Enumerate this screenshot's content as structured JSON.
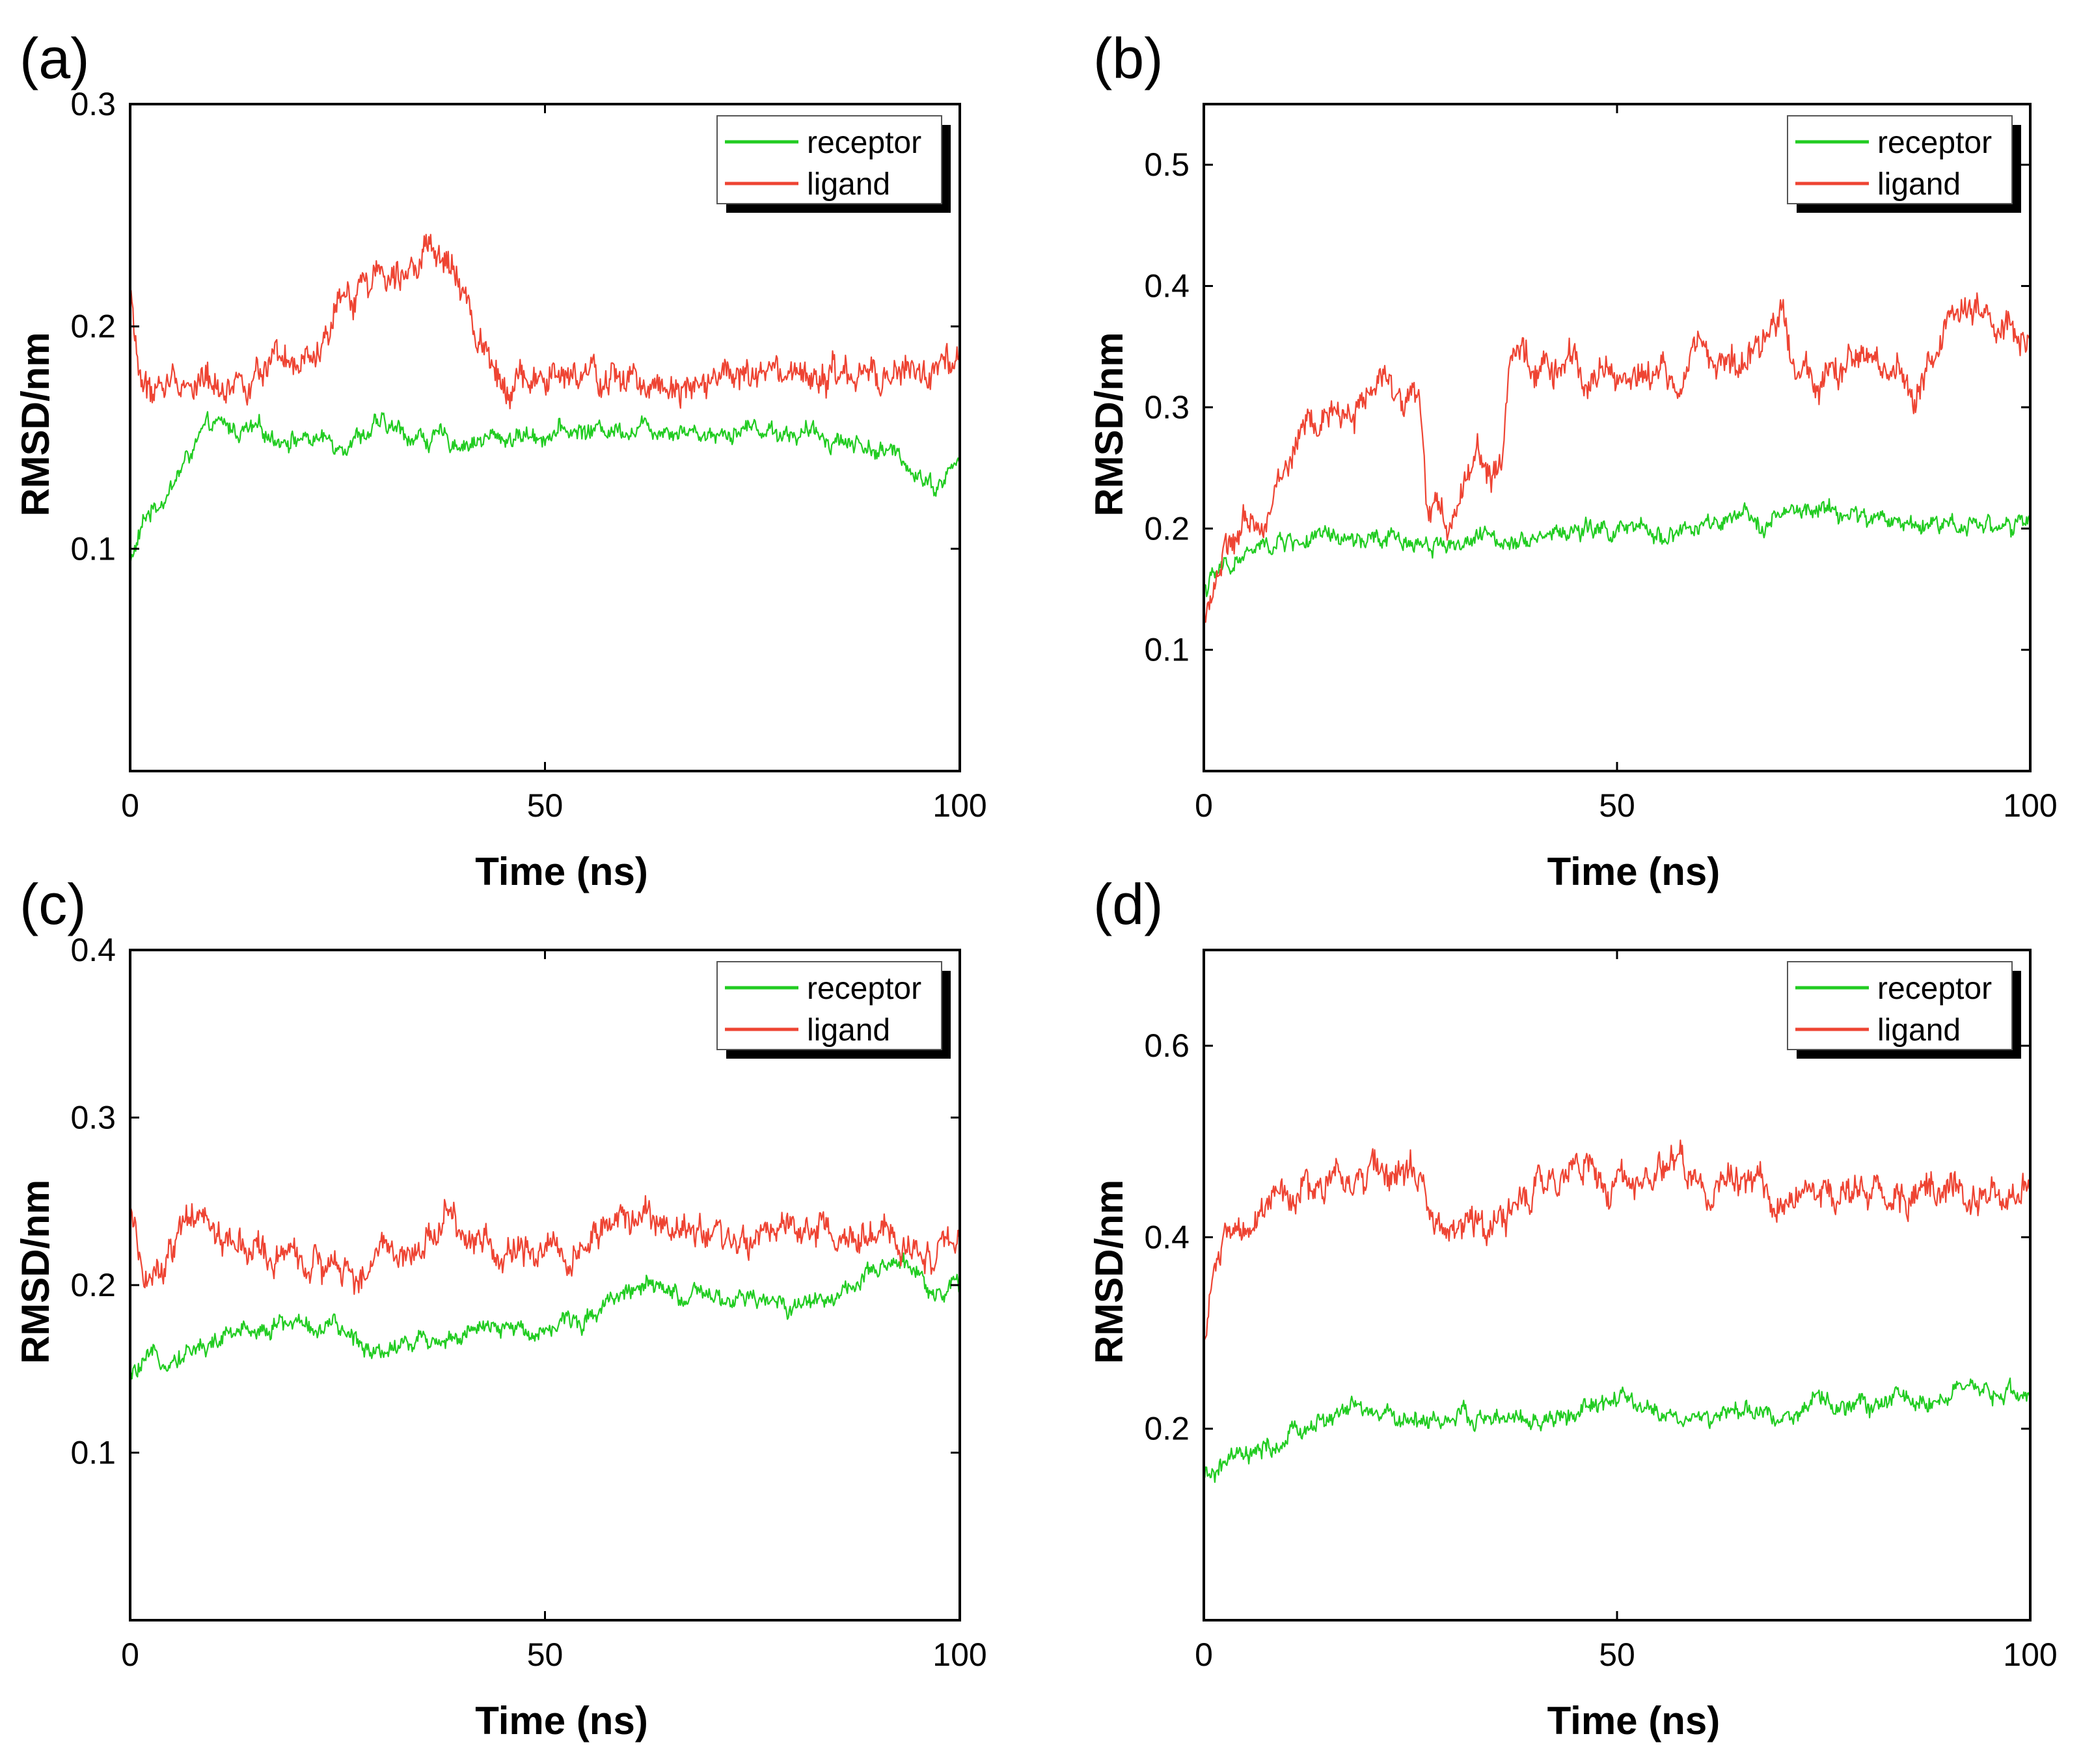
{
  "chart_data": [
    {
      "panel": "(a)",
      "type": "line",
      "xlabel": "Time (ns)",
      "ylabel": "RMSD/nm",
      "xlim": [
        0,
        100
      ],
      "ylim": [
        0,
        0.3
      ],
      "xticks": [
        "0",
        "50",
        "100"
      ],
      "yticks": [
        "0.1",
        "0.2",
        "0.3"
      ],
      "legend": "top-right",
      "series": [
        {
          "name": "receptor",
          "color": "#22cc22",
          "x": [
            0,
            2,
            5,
            8,
            10,
            15,
            20,
            25,
            30,
            35,
            40,
            45,
            50,
            55,
            60,
            65,
            70,
            75,
            80,
            85,
            90,
            93,
            95,
            97,
            100
          ],
          "y": [
            0.093,
            0.115,
            0.128,
            0.148,
            0.155,
            0.152,
            0.15,
            0.148,
            0.155,
            0.15,
            0.148,
            0.15,
            0.152,
            0.153,
            0.155,
            0.155,
            0.152,
            0.155,
            0.152,
            0.15,
            0.145,
            0.14,
            0.135,
            0.128,
            0.14
          ]
        },
        {
          "name": "ligand",
          "color": "#ee4433",
          "x": [
            0,
            1,
            2,
            5,
            10,
            15,
            20,
            23,
            25,
            28,
            30,
            33,
            35,
            38,
            40,
            42,
            45,
            50,
            55,
            60,
            65,
            70,
            75,
            80,
            85,
            90,
            95,
            100
          ],
          "y": [
            0.215,
            0.18,
            0.17,
            0.175,
            0.175,
            0.178,
            0.18,
            0.185,
            0.205,
            0.22,
            0.225,
            0.232,
            0.233,
            0.228,
            0.215,
            0.195,
            0.178,
            0.175,
            0.176,
            0.175,
            0.176,
            0.178,
            0.176,
            0.175,
            0.176,
            0.175,
            0.18,
            0.178
          ]
        }
      ]
    },
    {
      "panel": "(b)",
      "type": "line",
      "xlabel": "Time (ns)",
      "ylabel": "RMSD/nm",
      "xlim": [
        0,
        100
      ],
      "ylim": [
        0,
        0.55
      ],
      "xticks": [
        "0",
        "50",
        "100"
      ],
      "yticks": [
        "0.1",
        "0.2",
        "0.3",
        "0.4",
        "0.5"
      ],
      "legend": "top-right",
      "series": [
        {
          "name": "receptor",
          "color": "#22cc22",
          "x": [
            0,
            2,
            5,
            8,
            10,
            15,
            20,
            25,
            30,
            35,
            40,
            45,
            50,
            55,
            60,
            65,
            70,
            75,
            80,
            85,
            90,
            95,
            100
          ],
          "y": [
            0.15,
            0.165,
            0.178,
            0.185,
            0.19,
            0.19,
            0.188,
            0.19,
            0.188,
            0.192,
            0.195,
            0.198,
            0.198,
            0.195,
            0.2,
            0.205,
            0.21,
            0.215,
            0.208,
            0.205,
            0.205,
            0.205,
            0.2
          ]
        },
        {
          "name": "ligand",
          "color": "#ee4433",
          "x": [
            0,
            2,
            4,
            6,
            8,
            10,
            12,
            15,
            18,
            20,
            23,
            26,
            27,
            29,
            31,
            33,
            35,
            36,
            37,
            40,
            45,
            50,
            55,
            58,
            60,
            63,
            65,
            68,
            70,
            72,
            75,
            78,
            80,
            83,
            86,
            88,
            90,
            93,
            95,
            97,
            100
          ],
          "y": [
            0.13,
            0.17,
            0.19,
            0.2,
            0.22,
            0.25,
            0.28,
            0.29,
            0.3,
            0.31,
            0.32,
            0.31,
            0.22,
            0.2,
            0.23,
            0.27,
            0.24,
            0.25,
            0.33,
            0.335,
            0.33,
            0.33,
            0.325,
            0.32,
            0.35,
            0.34,
            0.33,
            0.35,
            0.38,
            0.34,
            0.32,
            0.33,
            0.34,
            0.33,
            0.31,
            0.34,
            0.37,
            0.38,
            0.36,
            0.37,
            0.34
          ]
        }
      ]
    },
    {
      "panel": "(c)",
      "type": "line",
      "xlabel": "Time (ns)",
      "ylabel": "RMSD/nm",
      "xlim": [
        0,
        100
      ],
      "ylim": [
        0,
        0.4
      ],
      "xticks": [
        "0",
        "50",
        "100"
      ],
      "yticks": [
        "0.1",
        "0.2",
        "0.3",
        "0.4"
      ],
      "legend": "top-right",
      "series": [
        {
          "name": "receptor",
          "color": "#22cc22",
          "x": [
            0,
            3,
            6,
            10,
            15,
            20,
            25,
            30,
            35,
            40,
            45,
            50,
            55,
            58,
            60,
            65,
            70,
            75,
            80,
            85,
            90,
            93,
            95,
            97,
            100
          ],
          "y": [
            0.145,
            0.155,
            0.16,
            0.165,
            0.175,
            0.178,
            0.172,
            0.162,
            0.168,
            0.17,
            0.173,
            0.175,
            0.18,
            0.195,
            0.198,
            0.195,
            0.19,
            0.19,
            0.188,
            0.195,
            0.205,
            0.215,
            0.21,
            0.195,
            0.2
          ]
        },
        {
          "name": "ligand",
          "color": "#ee4433",
          "x": [
            0,
            2,
            4,
            6,
            9,
            12,
            15,
            20,
            25,
            28,
            30,
            35,
            38,
            40,
            42,
            45,
            48,
            50,
            55,
            58,
            60,
            63,
            65,
            70,
            75,
            80,
            85,
            90,
            95,
            100
          ],
          "y": [
            0.24,
            0.2,
            0.21,
            0.23,
            0.24,
            0.225,
            0.22,
            0.215,
            0.205,
            0.21,
            0.215,
            0.225,
            0.24,
            0.235,
            0.23,
            0.215,
            0.225,
            0.22,
            0.225,
            0.232,
            0.24,
            0.235,
            0.232,
            0.23,
            0.228,
            0.23,
            0.23,
            0.225,
            0.22,
            0.225
          ]
        }
      ]
    },
    {
      "panel": "(d)",
      "type": "line",
      "xlabel": "Time (ns)",
      "ylabel": "RMSD/nm",
      "xlim": [
        0,
        100
      ],
      "ylim": [
        0,
        0.7
      ],
      "xticks": [
        "0",
        "50",
        "100"
      ],
      "yticks": [
        "0.2",
        "0.4",
        "0.6"
      ],
      "legend": "top-right",
      "series": [
        {
          "name": "receptor",
          "color": "#22cc22",
          "x": [
            0,
            3,
            6,
            9,
            12,
            15,
            18,
            20,
            25,
            30,
            35,
            40,
            45,
            50,
            52,
            55,
            60,
            65,
            70,
            75,
            80,
            85,
            90,
            95,
            100
          ],
          "y": [
            0.145,
            0.165,
            0.17,
            0.18,
            0.2,
            0.21,
            0.22,
            0.215,
            0.21,
            0.21,
            0.21,
            0.205,
            0.215,
            0.23,
            0.225,
            0.215,
            0.21,
            0.215,
            0.215,
            0.225,
            0.225,
            0.23,
            0.235,
            0.235,
            0.24
          ]
        },
        {
          "name": "ligand",
          "color": "#ee4433",
          "x": [
            0,
            1,
            3,
            6,
            10,
            15,
            20,
            25,
            27,
            30,
            35,
            40,
            45,
            50,
            55,
            58,
            60,
            65,
            70,
            75,
            80,
            85,
            90,
            93,
            95,
            100
          ],
          "y": [
            0.29,
            0.36,
            0.4,
            0.42,
            0.44,
            0.455,
            0.465,
            0.47,
            0.43,
            0.41,
            0.42,
            0.45,
            0.47,
            0.47,
            0.46,
            0.47,
            0.46,
            0.455,
            0.45,
            0.44,
            0.445,
            0.45,
            0.46,
            0.435,
            0.445,
            0.46
          ]
        }
      ]
    }
  ]
}
